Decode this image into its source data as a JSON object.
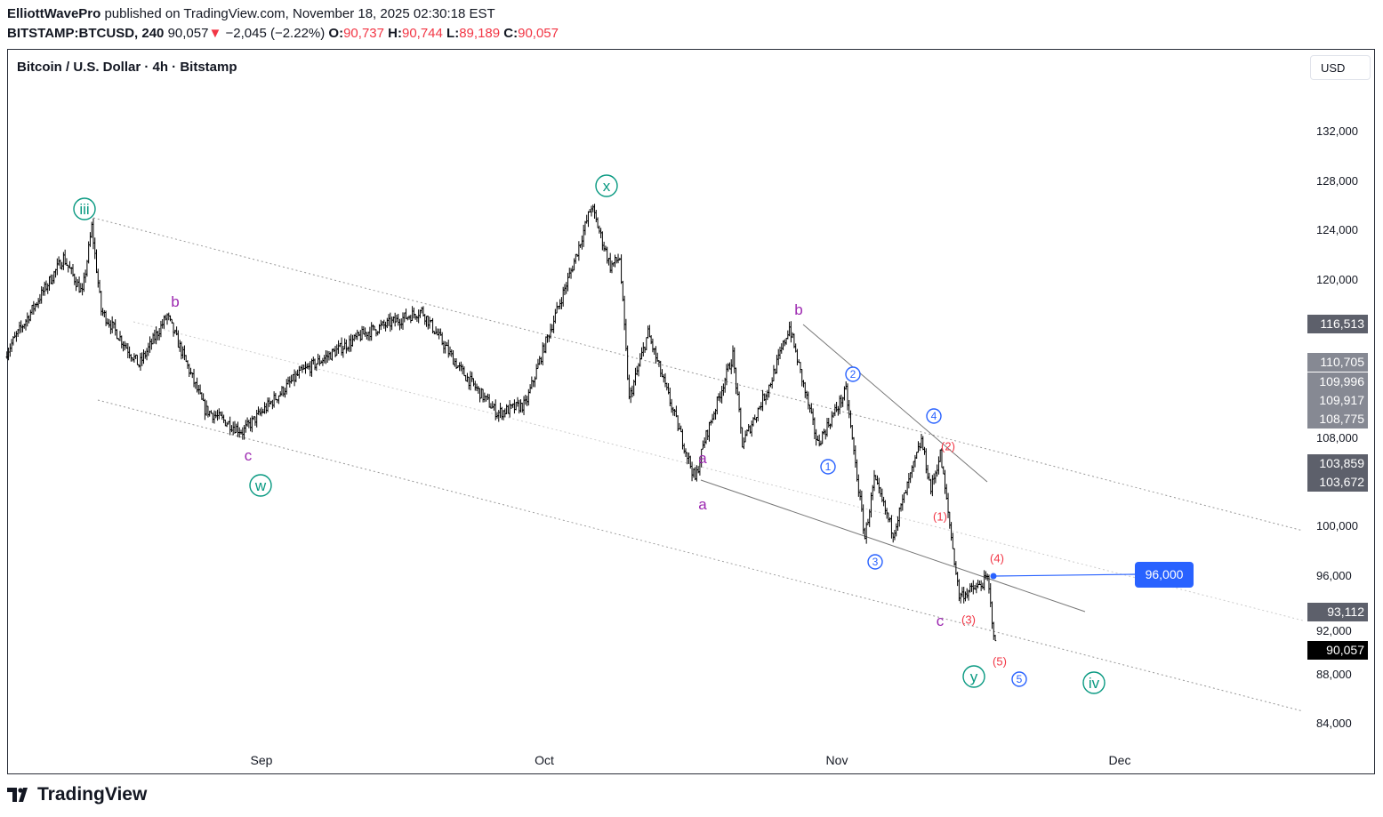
{
  "header": {
    "author": "ElliottWavePro",
    "published_text": "published on TradingView.com, November 18, 2025 02:30:18 EST",
    "symbol": "BITSTAMP:BTCUSD, 240",
    "last": "90,057",
    "change": "−2,045 (−2.22%)",
    "ohlc": {
      "o_label": "O:",
      "o": "90,737",
      "h_label": "H:",
      "h": "90,744",
      "l_label": "L:",
      "l": "89,189",
      "c_label": "C:",
      "c": "90,057"
    }
  },
  "chart_title": "Bitcoin / U.S. Dollar · 4h · Bitstamp",
  "currency_button": "USD",
  "footer": {
    "logo_text": "TradingView"
  },
  "colors": {
    "wave_green": "#089981",
    "wave_purple": "#9c27b0",
    "wave_blue": "#2962ff",
    "wave_red": "#f23645",
    "price_label": "#6a6d78",
    "last_label": "#000000",
    "target": "#2962ff"
  },
  "chart_data": {
    "type": "ohlc",
    "interval": "4h",
    "x_ticks": [
      "Sep",
      "Oct",
      "Nov",
      "Dec"
    ],
    "y_ticks": [
      "132,000",
      "128,000",
      "124,000",
      "120,000",
      "108,000",
      "100,000",
      "96,000",
      "92,000",
      "88,000",
      "84,000"
    ],
    "ylim": [
      84000,
      132000
    ],
    "price_path": [
      [
        "2025-08-05",
        114100
      ],
      [
        "2025-08-11",
        121700
      ],
      [
        "2025-08-13",
        118800
      ],
      [
        "2025-08-14",
        124200
      ],
      [
        "2025-08-15",
        117400
      ],
      [
        "2025-08-19",
        113000
      ],
      [
        "2025-08-22",
        117000
      ],
      [
        "2025-08-26",
        109400
      ],
      [
        "2025-08-30",
        107600
      ],
      [
        "2025-09-05",
        112300
      ],
      [
        "2025-09-12",
        115600
      ],
      [
        "2025-09-18",
        117400
      ],
      [
        "2025-09-22",
        112700
      ],
      [
        "2025-09-26",
        109100
      ],
      [
        "2025-09-29",
        109800
      ],
      [
        "2025-10-01",
        114500
      ],
      [
        "2025-10-04",
        121000
      ],
      [
        "2025-10-06",
        125900
      ],
      [
        "2025-10-08",
        121000
      ],
      [
        "2025-10-09",
        121700
      ],
      [
        "2025-10-10",
        110200
      ],
      [
        "2025-10-12",
        115600
      ],
      [
        "2025-10-17",
        103700
      ],
      [
        "2025-10-18",
        106900
      ],
      [
        "2025-10-21",
        113800
      ],
      [
        "2025-10-22",
        106600
      ],
      [
        "2025-10-25",
        111600
      ],
      [
        "2025-10-27",
        116100
      ],
      [
        "2025-10-30",
        106600
      ],
      [
        "2025-11-02",
        110900
      ],
      [
        "2025-11-04",
        99000
      ],
      [
        "2025-11-05",
        103700
      ],
      [
        "2025-11-07",
        99400
      ],
      [
        "2025-11-10",
        106900
      ],
      [
        "2025-11-11",
        102900
      ],
      [
        "2025-11-12",
        105800
      ],
      [
        "2025-11-14",
        94300
      ],
      [
        "2025-11-16",
        95000
      ],
      [
        "2025-11-17",
        95700
      ],
      [
        "2025-11-18",
        89200
      ]
    ],
    "price_labels": [
      {
        "text": "116,513",
        "tone": "dark"
      },
      {
        "text": "110,705",
        "tone": "light"
      },
      {
        "text": "109,996",
        "tone": "light"
      },
      {
        "text": "109,917",
        "tone": "light"
      },
      {
        "text": "108,775",
        "tone": "light"
      },
      {
        "text": "103,859",
        "tone": "dark"
      },
      {
        "text": "103,672",
        "tone": "dark"
      },
      {
        "text": "93,112",
        "tone": "dark"
      },
      {
        "text": "90,057",
        "tone": "last"
      }
    ],
    "target_label": "96,000",
    "wave_labels": [
      {
        "text": "iii",
        "style": "circle-green"
      },
      {
        "text": "b",
        "style": "purple"
      },
      {
        "text": "c",
        "style": "purple"
      },
      {
        "text": "w",
        "style": "circle-green"
      },
      {
        "text": "x",
        "style": "circle-green"
      },
      {
        "text": "a",
        "style": "purple"
      },
      {
        "text": "a",
        "style": "purple"
      },
      {
        "text": "b",
        "style": "purple"
      },
      {
        "text": "1",
        "style": "circle-blue"
      },
      {
        "text": "2",
        "style": "circle-blue"
      },
      {
        "text": "3",
        "style": "circle-blue"
      },
      {
        "text": "4",
        "style": "circle-blue"
      },
      {
        "text": "(2)",
        "style": "red"
      },
      {
        "text": "(1)",
        "style": "red"
      },
      {
        "text": "(4)",
        "style": "red"
      },
      {
        "text": "(3)",
        "style": "red"
      },
      {
        "text": "c",
        "style": "purple"
      },
      {
        "text": "(5)",
        "style": "red"
      },
      {
        "text": "5",
        "style": "circle-blue"
      },
      {
        "text": "y",
        "style": "circle-green"
      },
      {
        "text": "iv",
        "style": "circle-green"
      }
    ]
  }
}
